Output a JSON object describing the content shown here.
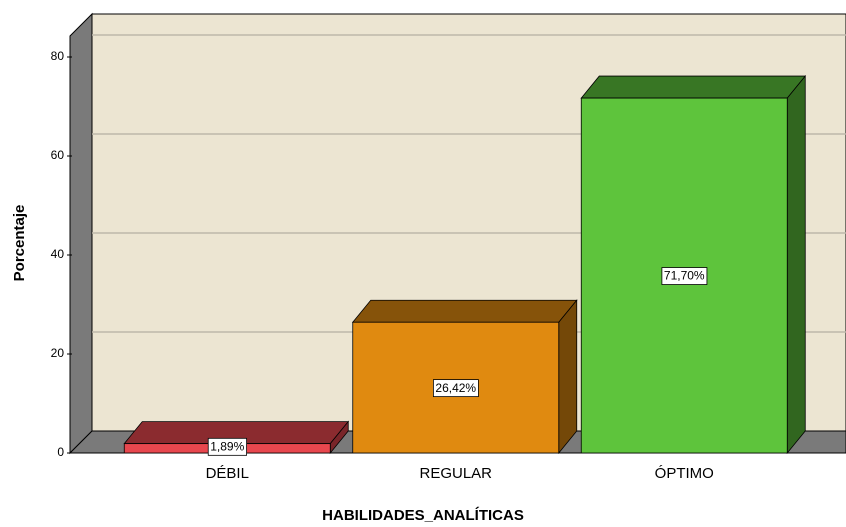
{
  "chart_data": {
    "type": "bar3d",
    "x_label": "HABILIDADES_ANALÍTICAS",
    "y_label": "Porcentaje",
    "categories": [
      "DÉBIL",
      "REGULAR",
      "ÓPTIMO"
    ],
    "values": [
      1.89,
      26.42,
      71.7
    ],
    "value_labels": [
      "1,89%",
      "26,42%",
      "71,70%"
    ],
    "colors": [
      "#e8474e",
      "#e08a10",
      "#5ec43c"
    ],
    "ylim": [
      0,
      84
    ],
    "yticks": [
      0,
      20,
      40,
      60,
      80
    ],
    "grid": true
  }
}
